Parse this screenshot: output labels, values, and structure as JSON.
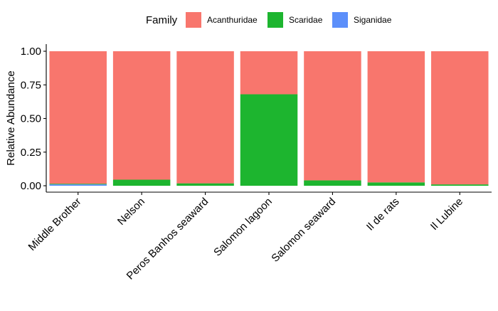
{
  "chart_data": {
    "type": "bar",
    "stacked": true,
    "ylabel": "Relative Abundance",
    "xlabel": "",
    "ylim": [
      0,
      1
    ],
    "yticks": [
      0.0,
      0.25,
      0.5,
      0.75,
      1.0
    ],
    "ytick_labels": [
      "0.00",
      "0.25",
      "0.50",
      "0.75",
      "1.00"
    ],
    "grid": false,
    "legend": {
      "title": "Family",
      "position": "top"
    },
    "categories": [
      "Middle Brother",
      "Nelson",
      "Peros Banhos seaward",
      "Salomon lagoon",
      "Salomon seaward",
      "Il de rats",
      "Il Lubine"
    ],
    "series": [
      {
        "name": "Acanthuridae",
        "color": "#F8766D",
        "values": [
          0.985,
          0.955,
          0.982,
          0.32,
          0.96,
          0.975,
          0.99
        ]
      },
      {
        "name": "Scaridae",
        "color": "#1DB52F",
        "values": [
          0.005,
          0.045,
          0.018,
          0.68,
          0.04,
          0.025,
          0.01
        ]
      },
      {
        "name": "Siganidae",
        "color": "#5C8FFA",
        "values": [
          0.01,
          0.0,
          0.0,
          0.0,
          0.0,
          0.0,
          0.0
        ]
      }
    ]
  }
}
